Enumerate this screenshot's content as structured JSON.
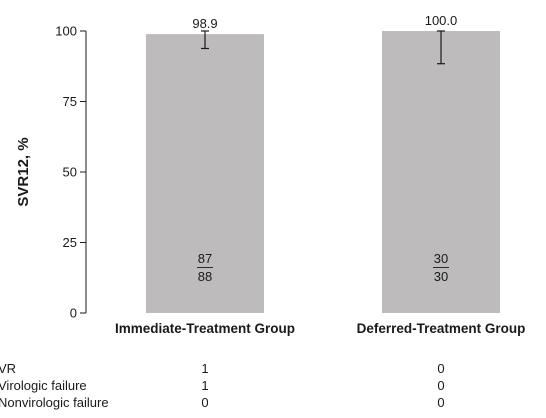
{
  "chart_data": {
    "type": "bar",
    "categories": [
      "Immediate-Treatment Group",
      "Deferred-Treatment Group"
    ],
    "values": [
      98.9,
      100.0
    ],
    "value_labels": [
      "98.9",
      "100.0"
    ],
    "error_bars": [
      {
        "upper": 100.0,
        "lower": 93.8
      },
      {
        "upper": 100.0,
        "lower": 88.4
      }
    ],
    "fractions": [
      {
        "numerator": "87",
        "denominator": "88"
      },
      {
        "numerator": "30",
        "denominator": "30"
      }
    ],
    "ylabel": "SVR12, %",
    "ylim": [
      0,
      100
    ],
    "yticks": [
      0,
      25,
      50,
      75,
      100
    ],
    "bar_color": "#bdbbbc",
    "grid": false
  },
  "table": {
    "rows": [
      {
        "label": "VR",
        "values": [
          "1",
          "0"
        ]
      },
      {
        "label": "Virologic failure",
        "values": [
          "1",
          "0"
        ]
      },
      {
        "label": "Nonvirologic failure",
        "values": [
          "0",
          "0"
        ]
      }
    ]
  }
}
